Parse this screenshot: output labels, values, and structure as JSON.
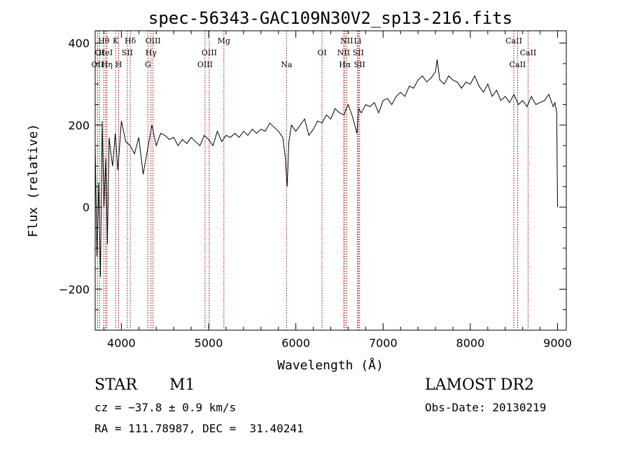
{
  "chart_data": {
    "type": "line",
    "title": "spec-56343-GAC109N30V2_sp13-216.fits",
    "xlabel": "Wavelength (Å)",
    "ylabel": "Flux (relative)",
    "xlim": [
      3700,
      9100
    ],
    "ylim": [
      -300,
      430
    ],
    "x_ticks": [
      4000,
      5000,
      6000,
      7000,
      8000,
      9000
    ],
    "x_tick_labels": [
      "4000",
      "5000",
      "6000",
      "7000",
      "8000",
      "9000"
    ],
    "y_ticks": [
      -200,
      0,
      200,
      400
    ],
    "y_tick_labels": [
      "-200",
      "0",
      "200",
      "400"
    ],
    "grid": false,
    "line_color": "#000000",
    "marker_line_color": "#8b0000",
    "series": [
      {
        "x": [
          3700,
          3720,
          3740,
          3760,
          3780,
          3800,
          3820,
          3840,
          3860,
          3880,
          3900,
          3930,
          3960,
          4000,
          4050,
          4100,
          4150,
          4200,
          4250,
          4300,
          4350,
          4400,
          4450,
          4500,
          4550,
          4600,
          4650,
          4700,
          4750,
          4800,
          4850,
          4900,
          4950,
          5000,
          5050,
          5100,
          5150,
          5200,
          5250,
          5300,
          5350,
          5400,
          5450,
          5500,
          5550,
          5600,
          5650,
          5700,
          5750,
          5800,
          5850,
          5880,
          5900,
          5920,
          5950,
          6000,
          6050,
          6100,
          6150,
          6200,
          6250,
          6300,
          6350,
          6400,
          6450,
          6500,
          6550,
          6600,
          6650,
          6700,
          6720,
          6750,
          6800,
          6850,
          6900,
          6950,
          7000,
          7050,
          7100,
          7150,
          7200,
          7250,
          7300,
          7350,
          7400,
          7450,
          7500,
          7550,
          7600,
          7620,
          7650,
          7700,
          7750,
          7800,
          7850,
          7900,
          7950,
          8000,
          8050,
          8100,
          8150,
          8200,
          8250,
          8300,
          8350,
          8400,
          8450,
          8500,
          8550,
          8600,
          8650,
          8700,
          8750,
          8800,
          8850,
          8900,
          8950,
          8970,
          8990,
          9000
        ],
        "y": [
          150,
          -120,
          60,
          -170,
          210,
          0,
          120,
          -90,
          170,
          130,
          100,
          180,
          90,
          210,
          160,
          150,
          130,
          170,
          80,
          140,
          200,
          150,
          180,
          175,
          165,
          170,
          150,
          165,
          155,
          170,
          160,
          150,
          175,
          165,
          150,
          185,
          160,
          175,
          170,
          180,
          170,
          185,
          175,
          190,
          180,
          190,
          185,
          205,
          195,
          185,
          170,
          120,
          50,
          160,
          200,
          185,
          200,
          215,
          175,
          190,
          210,
          205,
          225,
          215,
          240,
          230,
          225,
          250,
          220,
          180,
          240,
          230,
          250,
          245,
          255,
          230,
          260,
          265,
          250,
          270,
          280,
          270,
          295,
          290,
          310,
          320,
          305,
          315,
          330,
          360,
          310,
          300,
          320,
          310,
          305,
          290,
          305,
          300,
          320,
          295,
          280,
          300,
          270,
          285,
          260,
          270,
          255,
          275,
          250,
          260,
          245,
          270,
          250,
          255,
          260,
          275,
          245,
          255,
          230,
          0
        ]
      }
    ],
    "spectral_lines": [
      {
        "name": "Hθ",
        "wl": 3798,
        "row": 1
      },
      {
        "name": "OI",
        "wl": 3750,
        "row": 2
      },
      {
        "name": "HeI",
        "wl": 3820,
        "row": 2
      },
      {
        "name": "OII",
        "wl": 3727,
        "row": 3
      },
      {
        "name": "Hη",
        "wl": 3835,
        "row": 3
      },
      {
        "name": "K",
        "wl": 3934,
        "row": 1
      },
      {
        "name": "SII",
        "wl": 4068,
        "row": 2
      },
      {
        "name": "H",
        "wl": 3969,
        "row": 3
      },
      {
        "name": "Hδ",
        "wl": 4102,
        "row": 1
      },
      {
        "name": "OIII",
        "wl": 4363,
        "row": 1
      },
      {
        "name": "Hγ",
        "wl": 4340,
        "row": 2
      },
      {
        "name": "G",
        "wl": 4304,
        "row": 3
      },
      {
        "name": "Mg",
        "wl": 5175,
        "row": 1
      },
      {
        "name": "OIII",
        "wl": 5007,
        "row": 2
      },
      {
        "name": "OIII",
        "wl": 4959,
        "row": 3
      },
      {
        "name": "Na",
        "wl": 5893,
        "row": 3
      },
      {
        "name": "OI",
        "wl": 6300,
        "row": 2
      },
      {
        "name": "NII",
        "wl": 6583,
        "row": 1
      },
      {
        "name": "Li",
        "wl": 6708,
        "row": 1
      },
      {
        "name": "NII",
        "wl": 6548,
        "row": 2
      },
      {
        "name": "SII",
        "wl": 6716,
        "row": 2
      },
      {
        "name": "Hα",
        "wl": 6563,
        "row": 3
      },
      {
        "name": "SII",
        "wl": 6731,
        "row": 3
      },
      {
        "name": "CaII",
        "wl": 8498,
        "row": 1
      },
      {
        "name": "CaII",
        "wl": 8662,
        "row": 2
      },
      {
        "name": "CaII",
        "wl": 8542,
        "row": 3
      }
    ]
  },
  "info": {
    "object_class": "STAR",
    "subclass": "M1",
    "cz": "cz = −37.8 ± 0.9 km/s",
    "coords": "RA = 111.78987, DEC =  31.40241",
    "survey": "LAMOST DR2",
    "obs_date": "Obs-Date: 20130219"
  }
}
